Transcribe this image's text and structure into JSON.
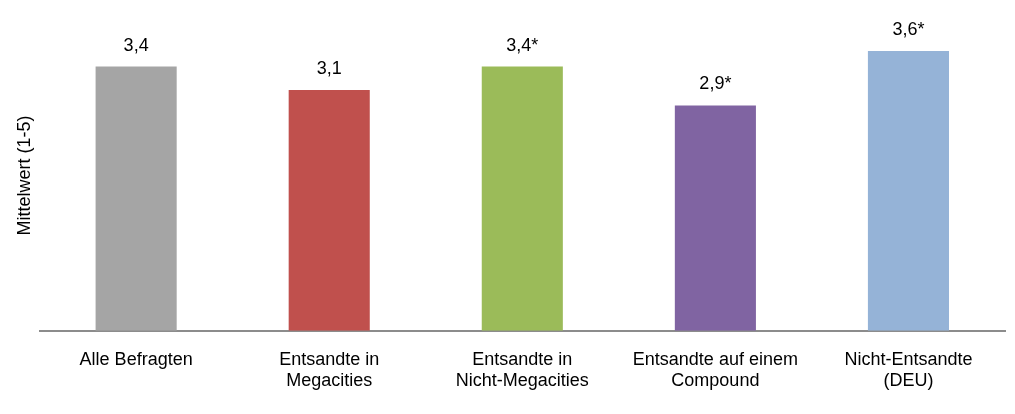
{
  "chart_data": {
    "type": "bar",
    "ylabel": "Mittelwert (1-5)",
    "categories": [
      "Alle Befragten",
      "Entsandte in Megacities",
      "Entsandte in Nicht-Megacities",
      "Entsandte auf einem Compound",
      "Nicht-Entsandte (DEU)"
    ],
    "values": [
      3.4,
      3.1,
      3.4,
      2.9,
      3.6
    ],
    "colors": [
      "#a5a5a5",
      "#c0504d",
      "#9bbb59",
      "#8064a2",
      "#95b3d7"
    ],
    "value_labels": [
      "3,4",
      "3,1",
      "3,4*",
      "2,9*",
      "3,6*"
    ],
    "grid": false,
    "legend": false
  }
}
